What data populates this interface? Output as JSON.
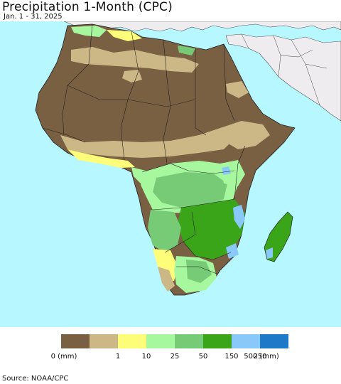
{
  "header": {
    "title": "Precipitation 1-Month (CPC)",
    "date_range": "Jan. 1 - 31, 2025"
  },
  "legend": {
    "items": [
      {
        "label": "0 (mm)",
        "color": "#7a6043"
      },
      {
        "label": "1",
        "color": "#cbb886"
      },
      {
        "label": "10",
        "color": "#fdfd7a"
      },
      {
        "label": "25",
        "color": "#a6f79d"
      },
      {
        "label": "50",
        "color": "#78cb76"
      },
      {
        "label": "150",
        "color": "#3aa519"
      },
      {
        "label": "250",
        "color": "#88c9f9"
      },
      {
        "label": "500 (mm)",
        "color": "#1e7ac8"
      }
    ],
    "extra_color": "#1e7ac8"
  },
  "footer": {
    "source": "Source: NOAA/CPC"
  },
  "map_colors": {
    "ocean": "#b7f7ff",
    "non_africa_land": "#efecf0",
    "borders": "#222222"
  }
}
